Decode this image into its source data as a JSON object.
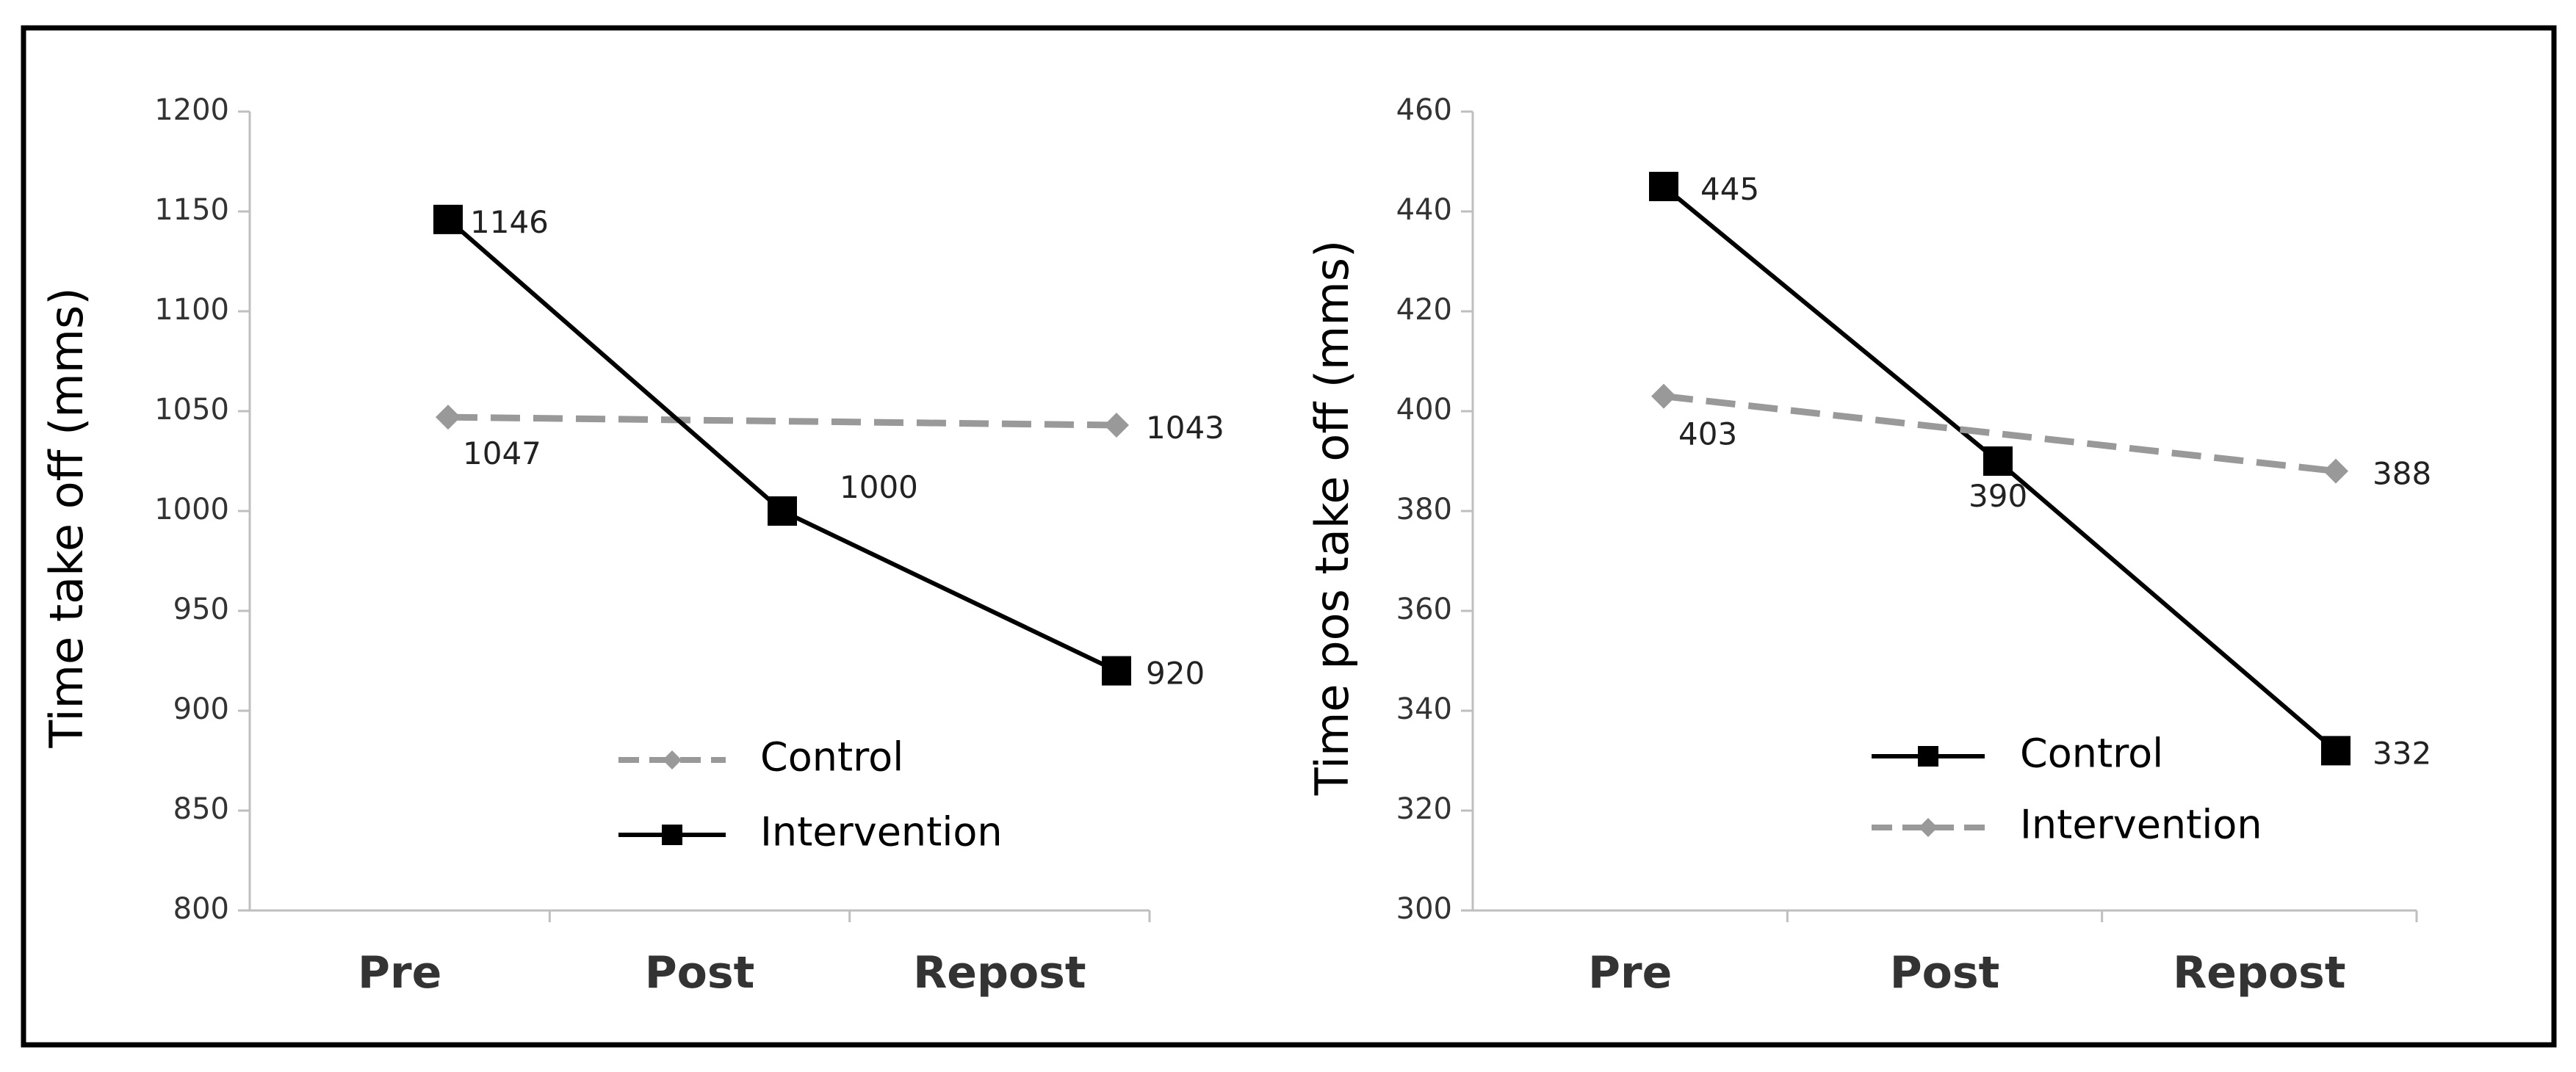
{
  "chart_data": [
    {
      "type": "line",
      "ylabel": "Time take off (mms)",
      "categories": [
        "Pre",
        "Post",
        "Repost"
      ],
      "ylim": [
        800,
        1200
      ],
      "yticks": [
        800,
        850,
        900,
        950,
        1000,
        1050,
        1100,
        1150,
        1200
      ],
      "legend_position": "lower-center",
      "series": [
        {
          "name": "Control",
          "values": [
            1047,
            1045,
            1043
          ],
          "labels": [
            "1047",
            "",
            "1043"
          ],
          "style": "dashed",
          "marker": "diamond",
          "color": "#999999"
        },
        {
          "name": "Intervention",
          "values": [
            1146,
            1000,
            920
          ],
          "labels": [
            "1146",
            "1000",
            "920"
          ],
          "style": "solid",
          "marker": "square",
          "color": "#000000"
        }
      ]
    },
    {
      "type": "line",
      "ylabel": "Time pos take off (mms)",
      "categories": [
        "Pre",
        "Post",
        "Repost"
      ],
      "ylim": [
        300,
        460
      ],
      "yticks": [
        300,
        320,
        340,
        360,
        380,
        400,
        420,
        440,
        460
      ],
      "legend_position": "lower-right",
      "series": [
        {
          "name": "Control",
          "values": [
            445,
            390,
            332
          ],
          "labels": [
            "445",
            "390",
            "332"
          ],
          "style": "solid",
          "marker": "square",
          "color": "#000000"
        },
        {
          "name": "Intervention",
          "values": [
            403,
            395.5,
            388
          ],
          "labels": [
            "403",
            "",
            "388"
          ],
          "style": "dashed",
          "marker": "diamond",
          "color": "#999999"
        }
      ]
    }
  ]
}
